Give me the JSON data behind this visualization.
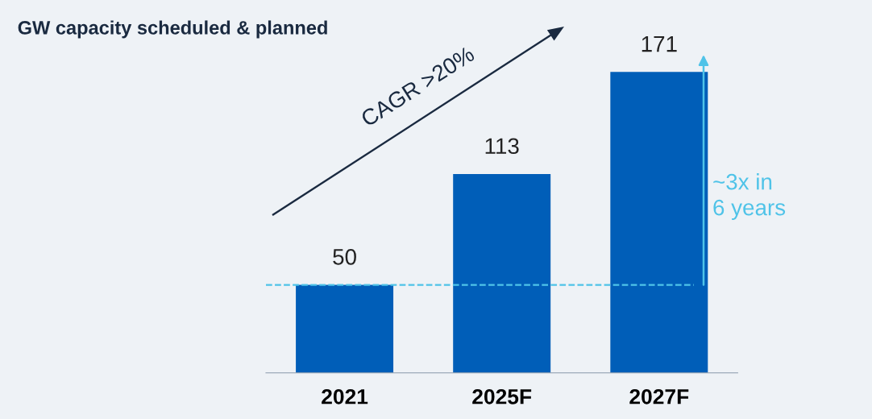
{
  "chart_data": {
    "type": "bar",
    "title": "GW capacity scheduled & planned",
    "categories": [
      "2021",
      "2025F",
      "2027F"
    ],
    "values": [
      50,
      113,
      171
    ],
    "color": "#005eb8",
    "data_labels": true,
    "ref_lines": [
      {
        "axis": "y",
        "value": 50,
        "color": "#4fc3e8",
        "line_style": "dashed"
      }
    ],
    "annotations": [
      "CAGR >20%",
      "~3x in\n6 years"
    ],
    "relative": false,
    "grid": false
  }
}
